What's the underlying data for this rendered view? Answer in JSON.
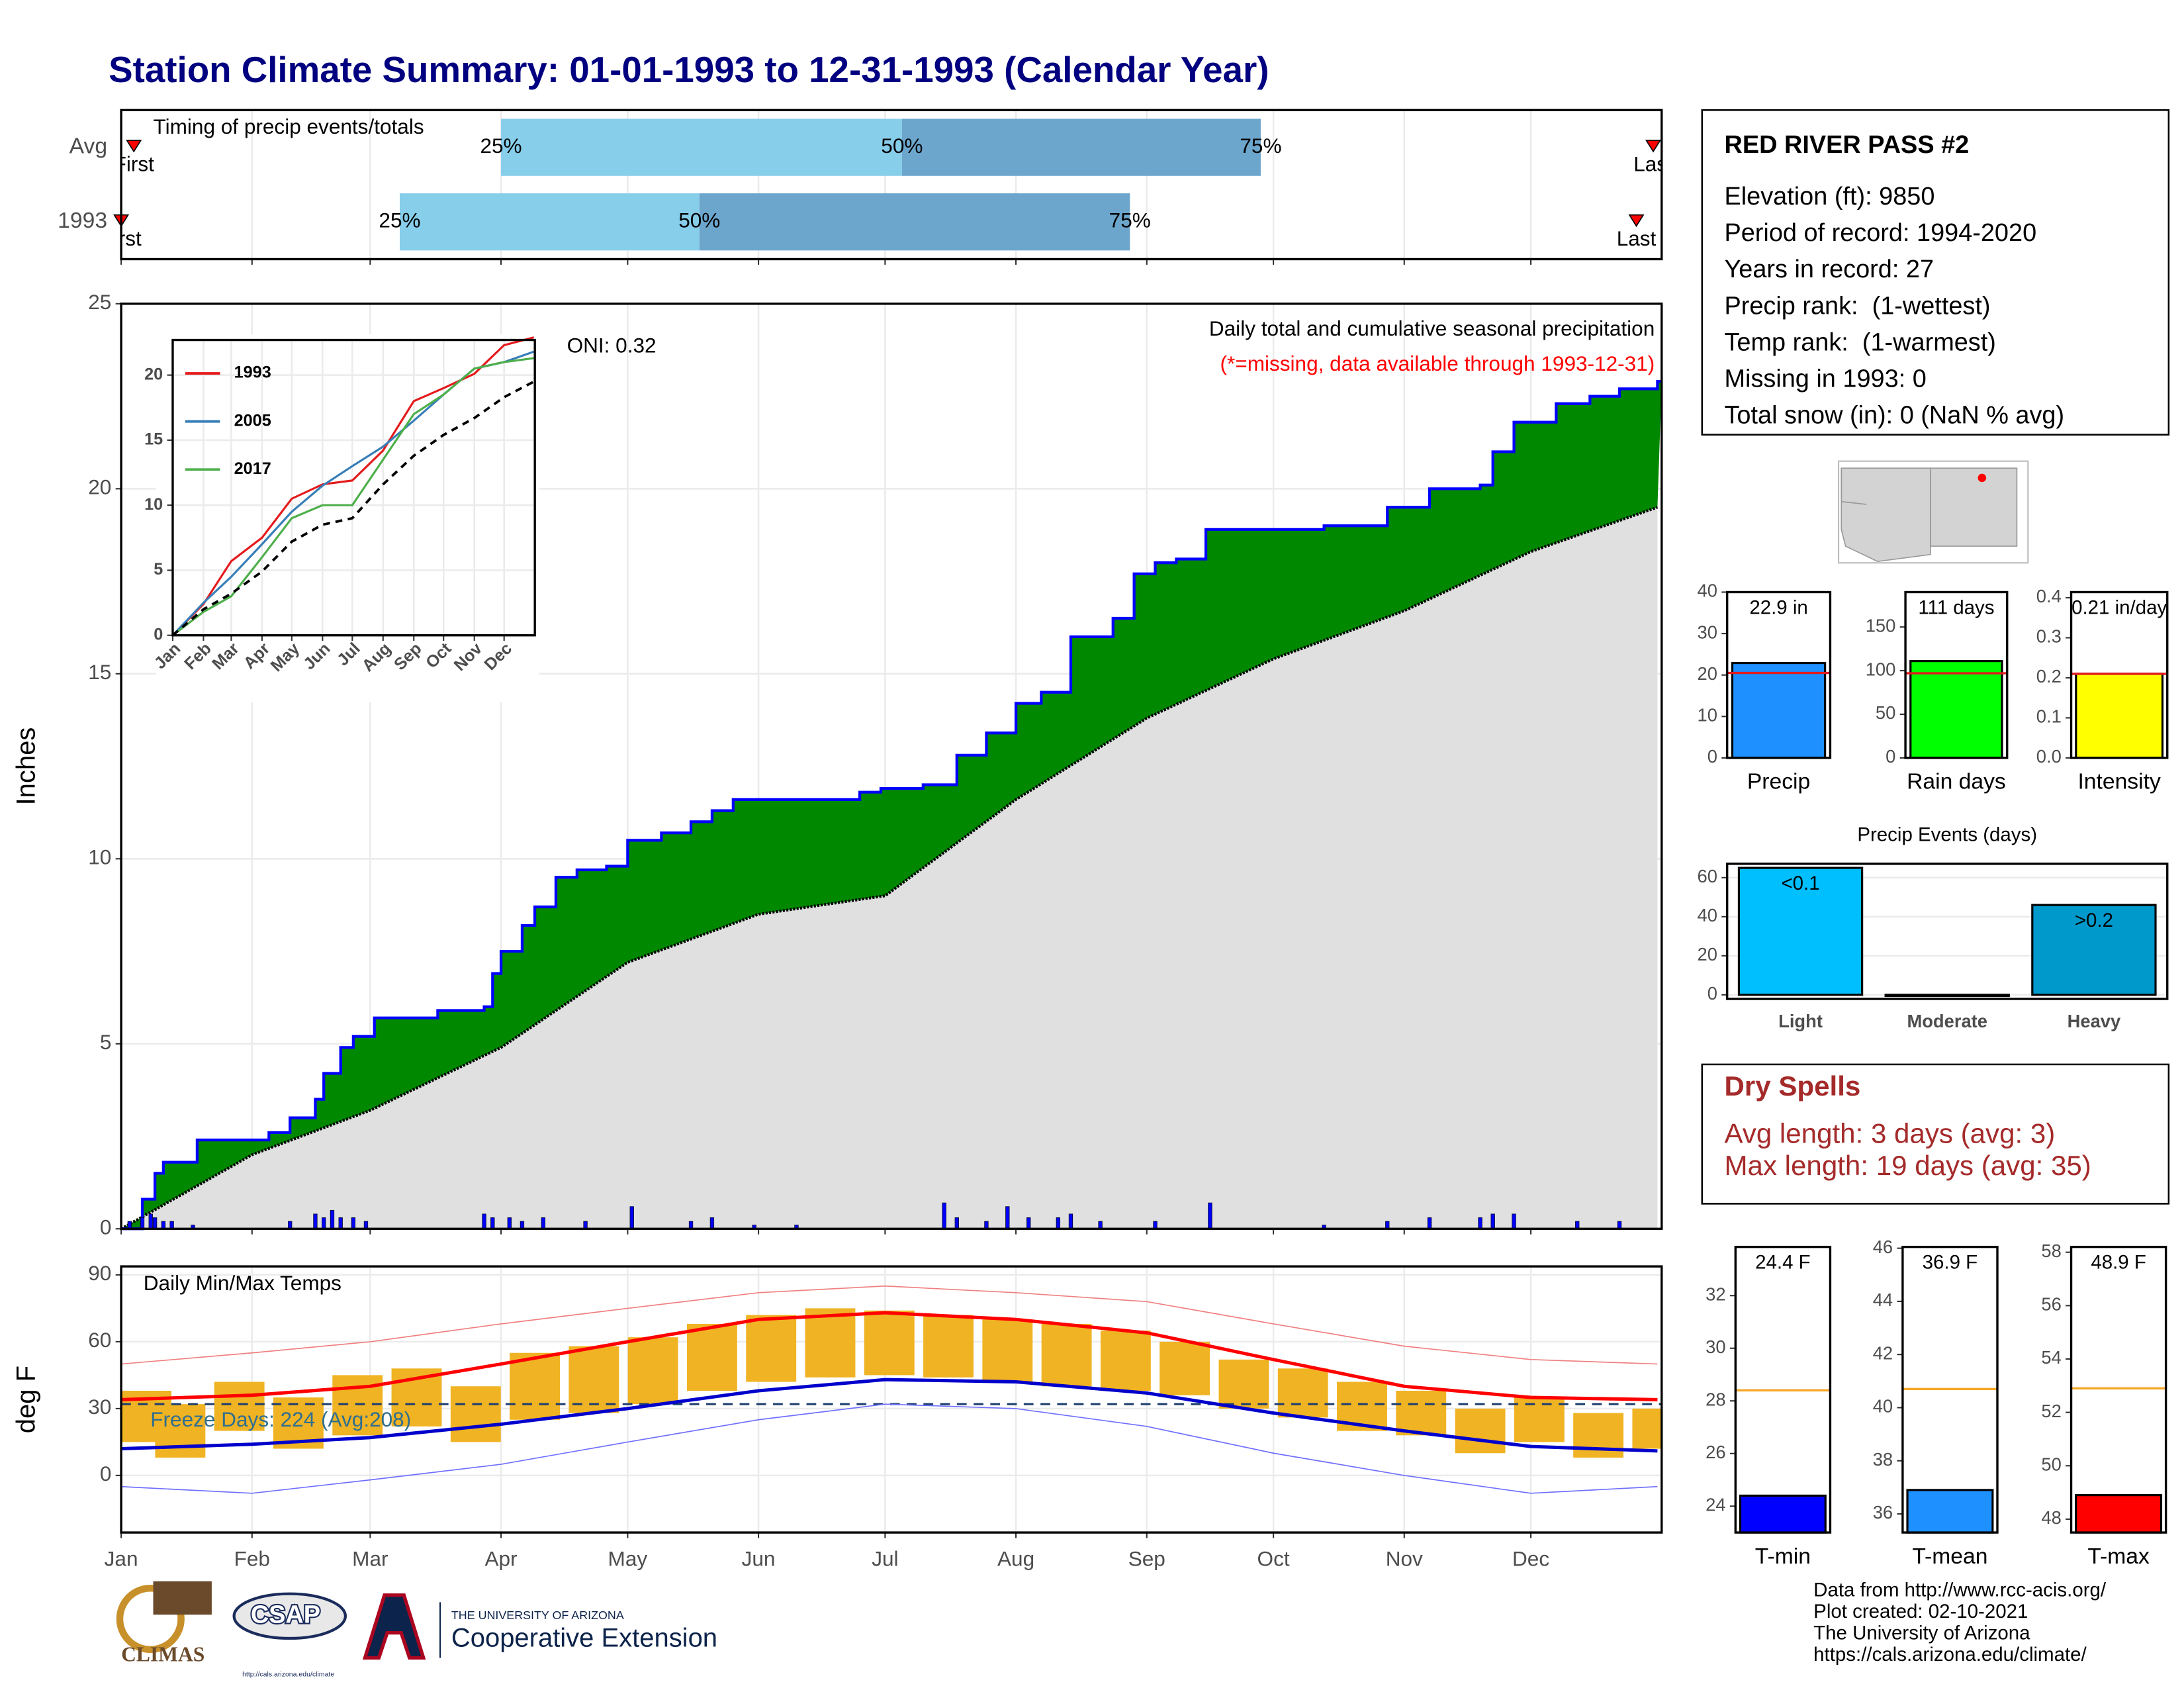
{
  "title": "Station Climate Summary: 01-01-1993 to 12-31-1993 (Calendar Year)",
  "station": {
    "name": "RED RIVER PASS #2",
    "lines": [
      "Elevation (ft): 9850",
      "Period of record: 1994-2020",
      "Years in record: 27",
      "Precip rank:  (1-wettest)",
      "Temp rank:  (1-warmest)",
      "Missing in 1993: 0",
      "Total snow (in): 0 (NaN % avg)"
    ]
  },
  "dry_spells": {
    "title": "Dry Spells",
    "lines": [
      "Avg length: 3 days (avg: 3)",
      "Max length: 19 days (avg: 35)"
    ]
  },
  "footer": [
    "Data from http://www.rcc-acis.org/",
    "Plot created: 02-10-2021",
    "The University of Arizona",
    "https://cals.arizona.edu/climate/"
  ],
  "logos": {
    "climas": "CLIMAS",
    "csap": "CSAP",
    "csap_url": "http://cals.arizona.edu/climate",
    "ua": "THE UNIVERSITY OF ARIZONA",
    "extension": "Cooperative Extension"
  },
  "chart_data": [
    {
      "type": "timeline",
      "title": "Timing of precip events/totals",
      "categories": [
        "Avg",
        "1993"
      ],
      "series": [
        {
          "name": "25%",
          "color": "#87ceeb",
          "values": [
            90,
            66
          ]
        },
        {
          "name": "50%",
          "color": "#6ca6cd",
          "values": [
            185,
            137
          ]
        },
        {
          "name": "75%",
          "values": [
            270,
            239
          ]
        },
        {
          "name": "First",
          "color": "#ff0000",
          "values": [
            3,
            0
          ]
        },
        {
          "name": "Last",
          "color": "#ff0000",
          "values": [
            363,
            359
          ]
        }
      ],
      "xlim": [
        0,
        365
      ],
      "xticks": [
        0,
        31,
        59,
        90,
        120,
        151,
        181,
        212,
        243,
        273,
        304,
        334
      ],
      "grid": true
    },
    {
      "type": "area",
      "ylabel": "Inches",
      "annotation": "ONI: 0.32",
      "subtitle": "Daily total and cumulative seasonal precipitation",
      "note": "(*=missing, data available through 1993-12-31)",
      "note_color": "#ff0000",
      "cumulative": {
        "color": "#008800",
        "line_color": "#0000ff",
        "x": [
          0,
          5,
          8,
          10,
          18,
          35,
          40,
          45,
          46,
          48,
          52,
          55,
          60,
          75,
          86,
          88,
          90,
          95,
          98,
          103,
          108,
          115,
          120,
          128,
          135,
          140,
          145,
          160,
          175,
          180,
          190,
          198,
          205,
          212,
          218,
          225,
          235,
          240,
          245,
          250,
          257,
          285,
          300,
          310,
          322,
          325,
          330,
          340,
          348,
          355,
          364
        ],
        "values": [
          0,
          0.8,
          1.5,
          1.8,
          2.4,
          2.6,
          3.0,
          3.0,
          3.5,
          4.2,
          4.9,
          5.2,
          5.7,
          5.9,
          6.0,
          6.9,
          7.5,
          8.2,
          8.7,
          9.5,
          9.7,
          9.8,
          10.5,
          10.7,
          11.0,
          11.3,
          11.6,
          11.6,
          11.8,
          11.9,
          12.0,
          12.8,
          13.4,
          14.2,
          14.5,
          16.0,
          16.5,
          17.7,
          18.0,
          18.1,
          18.9,
          19.0,
          19.5,
          20.0,
          20.1,
          21.0,
          21.8,
          22.3,
          22.5,
          22.7,
          22.9
        ]
      },
      "average": {
        "color": "#e0e0e0",
        "line_color": "#000000",
        "x": [
          0,
          31,
          59,
          90,
          120,
          151,
          181,
          212,
          243,
          273,
          304,
          334,
          364
        ],
        "values": [
          0,
          2.0,
          3.2,
          4.9,
          7.2,
          8.5,
          9.0,
          11.6,
          13.8,
          15.4,
          16.7,
          18.3,
          19.5
        ]
      },
      "daily": {
        "color": "#0000ff",
        "x": [
          2,
          5,
          7,
          8,
          10,
          12,
          17,
          40,
          46,
          48,
          50,
          52,
          55,
          58,
          86,
          88,
          92,
          95,
          100,
          110,
          121,
          135,
          140,
          150,
          160,
          195,
          198,
          205,
          210,
          215,
          222,
          225,
          232,
          245,
          258,
          285,
          300,
          310,
          322,
          325,
          330,
          345,
          355
        ],
        "values": [
          0.2,
          0.3,
          0.4,
          0.3,
          0.2,
          0.2,
          0.1,
          0.2,
          0.4,
          0.3,
          0.5,
          0.3,
          0.3,
          0.2,
          0.4,
          0.3,
          0.3,
          0.2,
          0.3,
          0.2,
          0.6,
          0.2,
          0.3,
          0.1,
          0.1,
          0.7,
          0.3,
          0.2,
          0.6,
          0.3,
          0.3,
          0.4,
          0.2,
          0.2,
          0.7,
          0.1,
          0.2,
          0.3,
          0.3,
          0.4,
          0.4,
          0.2,
          0.2
        ]
      },
      "xlim": [
        0,
        365
      ],
      "xticks": [
        0,
        31,
        59,
        90,
        120,
        151,
        181,
        212,
        243,
        273,
        304,
        334
      ],
      "ylim": [
        0,
        25
      ],
      "yticks": [
        0,
        5,
        10,
        15,
        20,
        25
      ],
      "grid": true
    },
    {
      "type": "line",
      "x": [
        0,
        31,
        59,
        90,
        120,
        151,
        181,
        212,
        243,
        273,
        304,
        334,
        364
      ],
      "series": [
        {
          "name": "1993",
          "color": "#e41a1c",
          "values": [
            0,
            2.4,
            5.7,
            7.5,
            10.5,
            11.6,
            11.9,
            14.2,
            18.0,
            19.0,
            20.1,
            22.3,
            22.9
          ]
        },
        {
          "name": "2005",
          "color": "#377eb8",
          "values": [
            0,
            2.5,
            4.5,
            7.0,
            9.5,
            11.5,
            13.0,
            14.5,
            16.5,
            18.5,
            20.5,
            21.0,
            21.8
          ]
        },
        {
          "name": "2017",
          "color": "#4daf4a",
          "values": [
            0,
            1.8,
            3.0,
            6.0,
            9.0,
            10.0,
            10.0,
            13.5,
            17.0,
            18.5,
            20.5,
            21.0,
            21.3
          ]
        },
        {
          "color": "#000000",
          "dash": true,
          "values": [
            0,
            2.0,
            3.2,
            4.9,
            7.2,
            8.5,
            9.0,
            11.6,
            13.8,
            15.4,
            16.7,
            18.3,
            19.5
          ]
        }
      ],
      "xlim": [
        0,
        365
      ],
      "xticks": [
        {
          "value": 0,
          "label": "Jan"
        },
        {
          "value": 31,
          "label": "Feb"
        },
        {
          "value": 59,
          "label": "Mar"
        },
        {
          "value": 90,
          "label": "Apr"
        },
        {
          "value": 120,
          "label": "May"
        },
        {
          "value": 151,
          "label": "Jun"
        },
        {
          "value": 181,
          "label": "Jul"
        },
        {
          "value": 212,
          "label": "Aug"
        },
        {
          "value": 243,
          "label": "Sep"
        },
        {
          "value": 273,
          "label": "Oct"
        },
        {
          "value": 304,
          "label": "Nov"
        },
        {
          "value": 334,
          "label": "Dec"
        }
      ],
      "ylim": [
        0,
        22.7
      ],
      "yticks": [
        0,
        5,
        10,
        15,
        20
      ],
      "grid": true
    },
    {
      "type": "range",
      "title": "Daily Min/Max Temps",
      "ylabel": "deg F",
      "annotation": "Freeze Days: 224 (Avg:208)",
      "annotation_color": "#2f6f8f",
      "bars": {
        "color": "#f0b323",
        "x": [
          0,
          14,
          28,
          42,
          56,
          70,
          84,
          98,
          112,
          126,
          140,
          154,
          168,
          182,
          196,
          210,
          224,
          238,
          252,
          266,
          280,
          294,
          308,
          322,
          336,
          350,
          364
        ],
        "low": [
          15,
          8,
          20,
          12,
          18,
          22,
          15,
          25,
          28,
          32,
          38,
          42,
          44,
          45,
          44,
          42,
          40,
          38,
          36,
          30,
          26,
          20,
          18,
          10,
          15,
          8,
          12
        ],
        "high": [
          38,
          32,
          42,
          35,
          45,
          48,
          40,
          55,
          58,
          62,
          68,
          72,
          75,
          74,
          72,
          70,
          68,
          65,
          60,
          52,
          48,
          42,
          38,
          30,
          35,
          28,
          30
        ]
      },
      "line_x": [
        0,
        31,
        59,
        90,
        120,
        151,
        181,
        212,
        243,
        273,
        304,
        334,
        364
      ],
      "lines": [
        {
          "color": "#ff0000",
          "width": 2.4,
          "values": [
            34,
            36,
            40,
            50,
            60,
            70,
            73,
            70,
            64,
            52,
            40,
            35,
            34
          ]
        },
        {
          "color": "#0000cc",
          "width": 2.4,
          "values": [
            12,
            14,
            17,
            23,
            30,
            38,
            43,
            42,
            37,
            28,
            20,
            13,
            11
          ]
        },
        {
          "color": "#f08080",
          "width": 0.8,
          "values": [
            50,
            55,
            60,
            68,
            75,
            82,
            85,
            82,
            78,
            68,
            58,
            52,
            50
          ]
        },
        {
          "color": "#7070ff",
          "width": 0.8,
          "values": [
            -5,
            -8,
            -2,
            5,
            15,
            25,
            32,
            30,
            22,
            10,
            0,
            -8,
            -5
          ]
        }
      ],
      "freeze_line": 32,
      "freeze_color": "#1f3f6f",
      "xlim": [
        0,
        365
      ],
      "xticks": [
        {
          "value": 0,
          "label": "Jan"
        },
        {
          "value": 31,
          "label": "Feb"
        },
        {
          "value": 59,
          "label": "Mar"
        },
        {
          "value": 90,
          "label": "Apr"
        },
        {
          "value": 120,
          "label": "May"
        },
        {
          "value": 151,
          "label": "Jun"
        },
        {
          "value": 181,
          "label": "Jul"
        },
        {
          "value": 212,
          "label": "Aug"
        },
        {
          "value": 243,
          "label": "Sep"
        },
        {
          "value": 273,
          "label": "Oct"
        },
        {
          "value": 304,
          "label": "Nov"
        },
        {
          "value": 334,
          "label": "Dec"
        }
      ],
      "ylim": [
        -25.6,
        93.8
      ],
      "yticks": [
        0,
        30,
        60,
        90
      ],
      "grid": true
    },
    {
      "type": "bar",
      "categories": [
        "Precip"
      ],
      "values": [
        22.9
      ],
      "value_labels": [
        "22.9 in"
      ],
      "color": "#1e90ff",
      "average": 20.5,
      "average_color": "#e41a1c",
      "ylim": [
        0,
        40
      ],
      "yticks": [
        0,
        10,
        20,
        30,
        40
      ]
    },
    {
      "type": "bar",
      "categories": [
        "Rain days"
      ],
      "values": [
        111
      ],
      "value_labels": [
        "111 days"
      ],
      "color": "#00ff00",
      "average": 97,
      "average_color": "#e41a1c",
      "ylim": [
        0,
        190
      ],
      "yticks": [
        0,
        50,
        100,
        150
      ]
    },
    {
      "type": "bar",
      "categories": [
        "Intensity"
      ],
      "values": [
        0.21
      ],
      "value_labels": [
        "0.21 in/day"
      ],
      "color": "#ffff00",
      "average": 0.21,
      "average_color": "#e41a1c",
      "ylim": [
        0,
        0.414
      ],
      "yticks": [
        {
          "value": 0,
          "label": "0.0"
        },
        0.1,
        0.2,
        0.3,
        0.4
      ]
    },
    {
      "type": "bar",
      "title": "Precip Events (days)",
      "categories": [
        "Light",
        "Moderate",
        "Heavy"
      ],
      "values": [
        65,
        0,
        46
      ],
      "bar_labels": [
        "<0.1",
        null,
        ">0.2"
      ],
      "colors": [
        "#00bfff",
        "#00bfff",
        "#0099cc"
      ],
      "ylim": [
        -2.1,
        67.1
      ],
      "yticks": [
        0,
        20,
        40,
        60
      ],
      "grid": true
    },
    {
      "type": "bar",
      "categories": [
        "T-min"
      ],
      "values": [
        24.4
      ],
      "value_labels": [
        "24.4 F"
      ],
      "color": "#0000ff",
      "average": 28.4,
      "average_color": "#f5a623",
      "ylim": [
        23.0,
        33.85
      ],
      "yticks": [
        24,
        26,
        28,
        30,
        32
      ]
    },
    {
      "type": "bar",
      "categories": [
        "T-mean"
      ],
      "values": [
        36.9
      ],
      "value_labels": [
        "36.9 F"
      ],
      "color": "#1e90ff",
      "average": 40.7,
      "average_color": "#f5a623",
      "ylim": [
        35.3,
        46.05
      ],
      "yticks": [
        36,
        38,
        40,
        42,
        44,
        46
      ]
    },
    {
      "type": "bar",
      "categories": [
        "T-max"
      ],
      "values": [
        48.9
      ],
      "value_labels": [
        "48.9 F"
      ],
      "color": "#ff0000",
      "average": 52.9,
      "average_color": "#f5a623",
      "ylim": [
        47.5,
        58.2
      ],
      "yticks": [
        48,
        50,
        52,
        54,
        56,
        58
      ]
    }
  ]
}
